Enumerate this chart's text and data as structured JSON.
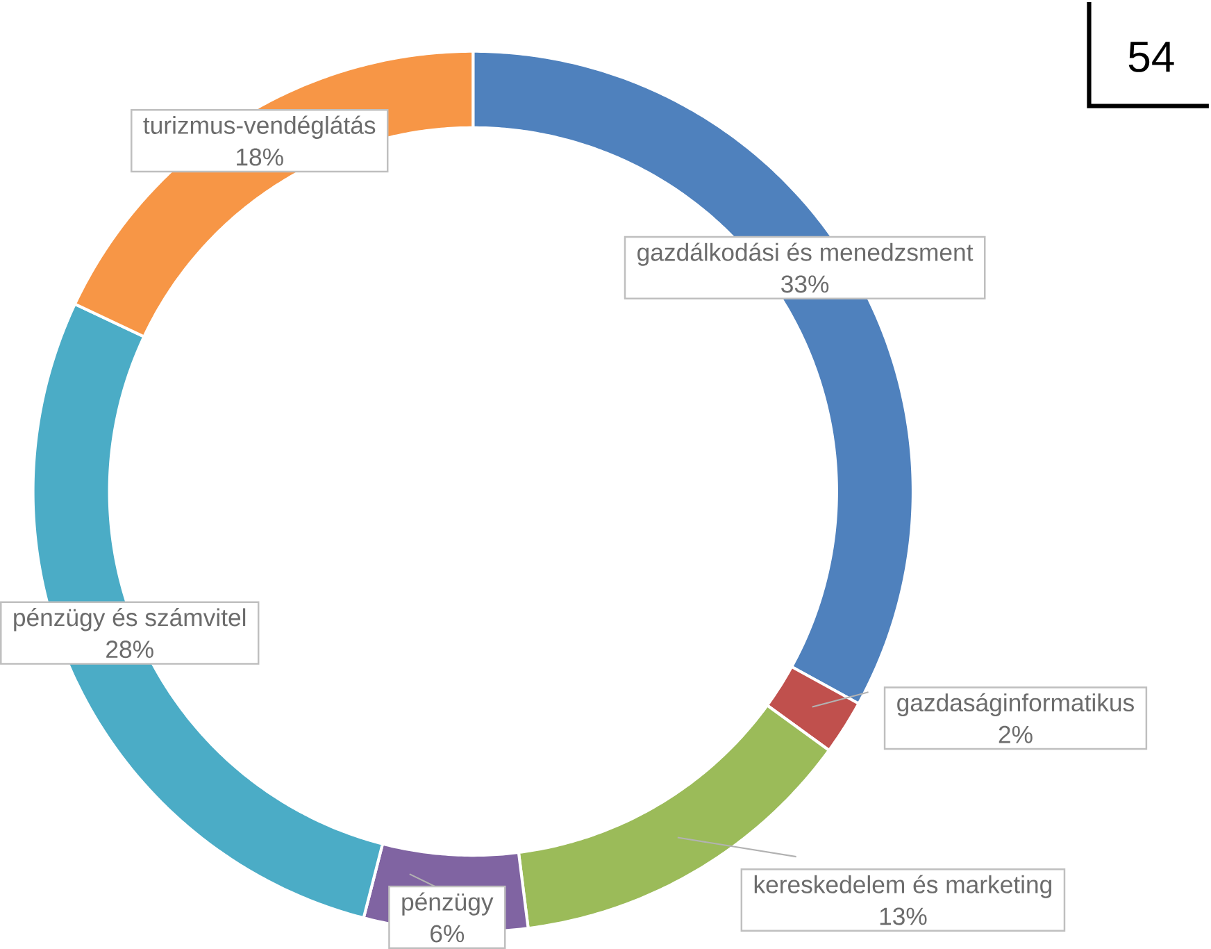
{
  "chart_data": {
    "type": "donut",
    "categories": [
      "gazdálkodási és menedzsment",
      "gazdaságinformatikus",
      "kereskedelem és marketing",
      "pénzügy",
      "pénzügy és számvitel",
      "turizmus-vendéglátás"
    ],
    "values": [
      33,
      2,
      13,
      6,
      28,
      18
    ],
    "value_labels": [
      "33%",
      "2%",
      "13%",
      "6%",
      "28%",
      "18%"
    ],
    "colors": [
      "#4f81bd",
      "#c0504d",
      "#9bbb59",
      "#8064a2",
      "#4bacc6",
      "#f79646"
    ],
    "annotations": [
      "54"
    ]
  }
}
